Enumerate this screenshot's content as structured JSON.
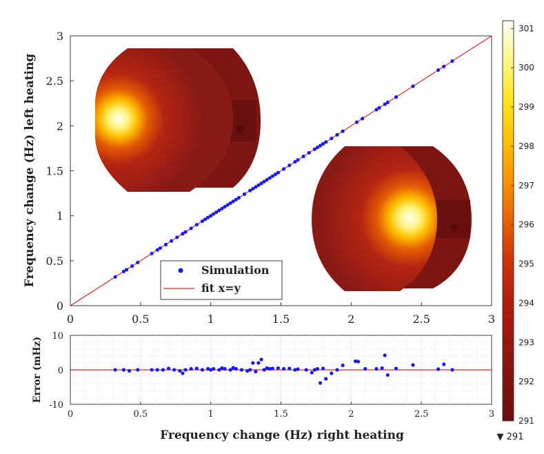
{
  "chart_data": [
    {
      "type": "scatter",
      "xlabel": "",
      "ylabel": "Frequency change (Hz) left heating",
      "xlim": [
        0,
        3
      ],
      "ylim": [
        0,
        3
      ],
      "xticks": [
        "0",
        "0.5",
        "1",
        "1.5",
        "2",
        "2.5",
        "3"
      ],
      "yticks": [
        "0",
        "0.5",
        "1",
        "1.5",
        "2",
        "2.5",
        "3"
      ],
      "legend": {
        "position": "bottom-left",
        "entries": [
          "Simulation",
          "fit x=y"
        ]
      },
      "series": [
        {
          "name": "Simulation",
          "marker": "dot",
          "color": "#1a1aee",
          "x": [
            0.32,
            0.38,
            0.4,
            0.44,
            0.48,
            0.58,
            0.62,
            0.64,
            0.68,
            0.72,
            0.76,
            0.8,
            0.82,
            0.86,
            0.9,
            0.94,
            0.96,
            0.98,
            1.0,
            1.02,
            1.04,
            1.06,
            1.08,
            1.1,
            1.12,
            1.14,
            1.16,
            1.18,
            1.2,
            1.24,
            1.28,
            1.3,
            1.32,
            1.34,
            1.36,
            1.38,
            1.4,
            1.42,
            1.44,
            1.46,
            1.48,
            1.52,
            1.56,
            1.6,
            1.62,
            1.66,
            1.7,
            1.74,
            1.76,
            1.78,
            1.8,
            1.82,
            1.86,
            1.9,
            1.94,
            2.04,
            2.08,
            2.18,
            2.2,
            2.24,
            2.26,
            2.32,
            2.44,
            2.62,
            2.66,
            2.72
          ],
          "y": [
            0.32,
            0.38,
            0.4,
            0.44,
            0.48,
            0.58,
            0.62,
            0.64,
            0.68,
            0.72,
            0.76,
            0.8,
            0.82,
            0.86,
            0.9,
            0.94,
            0.96,
            0.98,
            1.0,
            1.02,
            1.04,
            1.06,
            1.08,
            1.1,
            1.12,
            1.14,
            1.16,
            1.18,
            1.2,
            1.24,
            1.28,
            1.3,
            1.32,
            1.34,
            1.36,
            1.38,
            1.4,
            1.42,
            1.44,
            1.46,
            1.48,
            1.52,
            1.56,
            1.6,
            1.62,
            1.66,
            1.7,
            1.74,
            1.76,
            1.78,
            1.8,
            1.82,
            1.86,
            1.9,
            1.94,
            2.04,
            2.08,
            2.18,
            2.2,
            2.24,
            2.26,
            2.32,
            2.44,
            2.62,
            2.66,
            2.72
          ]
        },
        {
          "name": "fit x=y",
          "type": "line",
          "color": "#ee2222",
          "x": [
            0,
            3
          ],
          "y": [
            0,
            3
          ]
        }
      ]
    },
    {
      "type": "scatter",
      "xlabel": "Frequency change (Hz) right heating",
      "ylabel": "Error (mHz)",
      "xlim": [
        0,
        3
      ],
      "ylim": [
        -10,
        10
      ],
      "xticks": [
        "0",
        "0.5",
        "1",
        "1.5",
        "2",
        "2.5",
        "3"
      ],
      "yticks": [
        "10",
        "0",
        "-10"
      ],
      "grid": "dotted",
      "series": [
        {
          "name": "Error",
          "color": "#1a1aee",
          "x": [
            0.32,
            0.38,
            0.42,
            0.48,
            0.58,
            0.62,
            0.66,
            0.7,
            0.74,
            0.78,
            0.8,
            0.82,
            0.86,
            0.9,
            0.94,
            0.98,
            1.0,
            1.02,
            1.06,
            1.08,
            1.1,
            1.14,
            1.16,
            1.18,
            1.22,
            1.26,
            1.28,
            1.3,
            1.32,
            1.34,
            1.36,
            1.38,
            1.4,
            1.42,
            1.44,
            1.48,
            1.52,
            1.56,
            1.6,
            1.62,
            1.68,
            1.72,
            1.74,
            1.76,
            1.78,
            1.8,
            1.82,
            1.86,
            1.9,
            1.94,
            2.03,
            2.05,
            2.1,
            2.18,
            2.22,
            2.24,
            2.26,
            2.32,
            2.44,
            2.62,
            2.66,
            2.72
          ],
          "y": [
            0.0,
            0.0,
            -0.3,
            0.0,
            0.0,
            0.0,
            0.0,
            0.4,
            0.0,
            -0.3,
            -1.0,
            0.0,
            0.3,
            0.4,
            0.0,
            0.3,
            0.0,
            0.3,
            0.0,
            0.5,
            0.3,
            0.0,
            0.6,
            0.3,
            0.0,
            -0.3,
            0.0,
            2.0,
            -0.5,
            2.0,
            3.0,
            0.0,
            0.5,
            0.3,
            0.4,
            0.5,
            0.3,
            0.4,
            0.0,
            0.2,
            0.0,
            -0.8,
            0.0,
            0.3,
            -3.8,
            0.4,
            -2.6,
            -1.0,
            0.0,
            1.3,
            2.5,
            2.4,
            0.3,
            0.3,
            0.5,
            4.2,
            -1.5,
            0.4,
            1.4,
            0.2,
            1.6,
            0.0
          ]
        },
        {
          "name": "zero line",
          "type": "line",
          "color": "#ee2222",
          "x": [
            0,
            3
          ],
          "y": [
            0,
            0
          ]
        }
      ]
    }
  ],
  "colorbar": {
    "ticks": [
      "301",
      "300",
      "299",
      "298",
      "297",
      "296",
      "295",
      "294",
      "293",
      "292",
      "291"
    ],
    "min": 291,
    "max": 301.2,
    "bottom_note": "▼ 291",
    "colors": [
      "#6b0d0d",
      "#8c1410",
      "#b01e0c",
      "#d43a06",
      "#f07a00",
      "#ffb700",
      "#ffe418",
      "#fffa9a",
      "#fffff6"
    ]
  }
}
